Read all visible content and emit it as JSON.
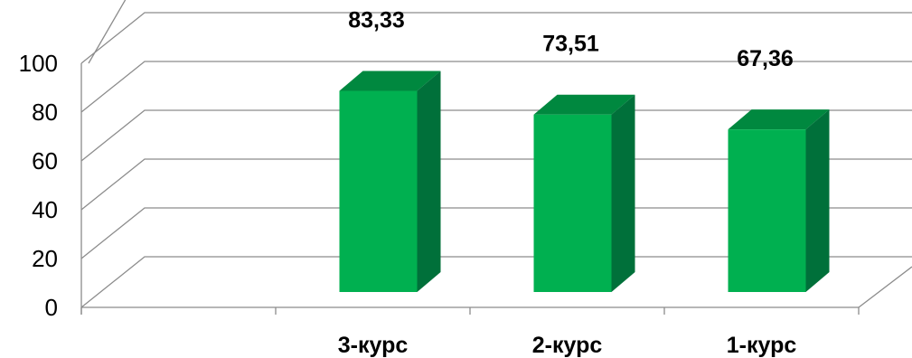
{
  "chart_data": {
    "type": "bar",
    "categories": [
      "",
      "3-курс",
      "2-курс",
      "1-курс"
    ],
    "values": [
      null,
      83.33,
      73.51,
      67.36
    ],
    "data_labels": [
      "",
      "83,33",
      "73,51",
      "67,36"
    ],
    "ylim": [
      0,
      100
    ],
    "yticks": [
      "0",
      "20",
      "40",
      "60",
      "80",
      "100"
    ],
    "grid": true,
    "three_d": true,
    "colors": {
      "bar_front": "#00b050",
      "bar_side": "#00703a",
      "bar_top": "#00883f",
      "gridline": "#8c8c8c"
    }
  }
}
